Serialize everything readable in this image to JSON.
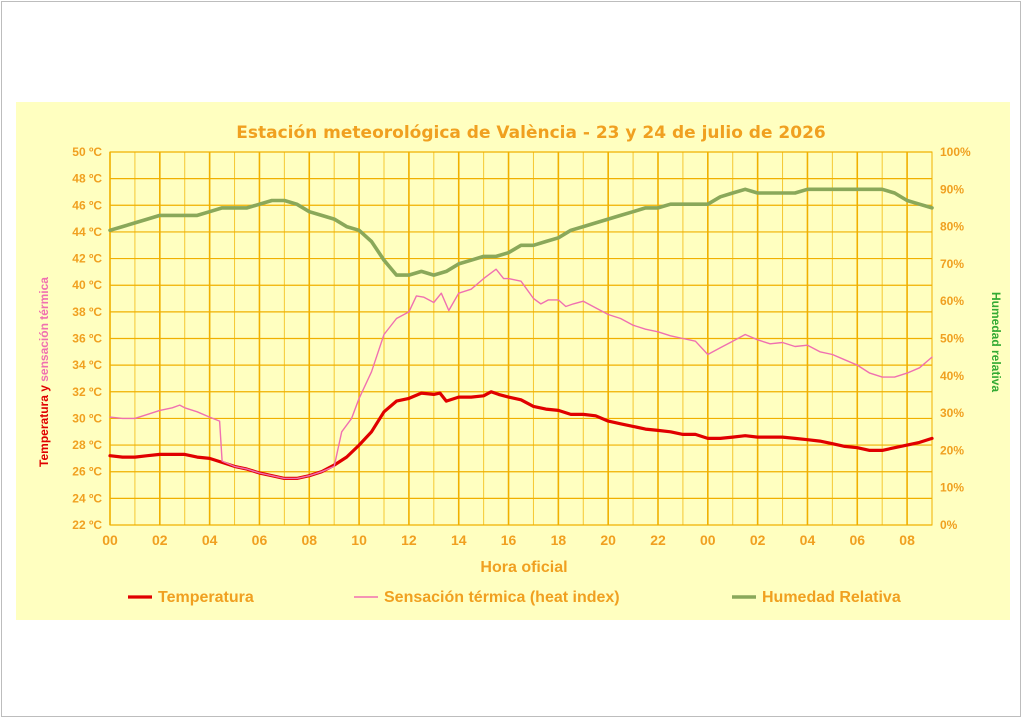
{
  "chart_data": {
    "type": "line",
    "title": "Estación meteorológica de València - 23 y 24 de julio de 2026",
    "xlabel": "Hora oficial",
    "ylabel_left_part1": "Temperatura y ",
    "ylabel_left_part2": "sensación térmica",
    "ylabel_right": "Humedad relativa",
    "x_range_hours": [
      0,
      33
    ],
    "x_tick_labels": [
      "00",
      "02",
      "04",
      "06",
      "08",
      "10",
      "12",
      "14",
      "16",
      "18",
      "20",
      "22",
      "00",
      "02",
      "04",
      "06",
      "08"
    ],
    "y_left_range": [
      22,
      50
    ],
    "y_left_tick_labels": [
      "22 ºC",
      "24 ºC",
      "26 ºC",
      "28 ºC",
      "30 ºC",
      "32 ºC",
      "34 ºC",
      "36 ºC",
      "38 ºC",
      "40 ºC",
      "42 ºC",
      "44 ºC",
      "46 ºC",
      "48 ºC",
      "50 ºC"
    ],
    "y_right_range": [
      0,
      100
    ],
    "y_right_tick_labels": [
      "0%",
      "10%",
      "20%",
      "30%",
      "40%",
      "50%",
      "60%",
      "70%",
      "80%",
      "90%",
      "100%"
    ],
    "grid": true,
    "legend_position": "bottom",
    "series": [
      {
        "name": "Temperatura",
        "axis": "left",
        "color": "#e00000",
        "points": [
          [
            0,
            27.2
          ],
          [
            0.5,
            27.1
          ],
          [
            1,
            27.1
          ],
          [
            1.5,
            27.2
          ],
          [
            2,
            27.3
          ],
          [
            2.5,
            27.3
          ],
          [
            3,
            27.3
          ],
          [
            3.5,
            27.1
          ],
          [
            4,
            27.0
          ],
          [
            4.5,
            26.7
          ],
          [
            5,
            26.4
          ],
          [
            5.5,
            26.2
          ],
          [
            6,
            25.9
          ],
          [
            6.5,
            25.7
          ],
          [
            7,
            25.5
          ],
          [
            7.5,
            25.5
          ],
          [
            8,
            25.7
          ],
          [
            8.5,
            26.0
          ],
          [
            9,
            26.5
          ],
          [
            9.5,
            27.1
          ],
          [
            10,
            28.0
          ],
          [
            10.5,
            29.0
          ],
          [
            11,
            30.5
          ],
          [
            11.5,
            31.3
          ],
          [
            12,
            31.5
          ],
          [
            12.5,
            31.9
          ],
          [
            13,
            31.8
          ],
          [
            13.25,
            31.9
          ],
          [
            13.5,
            31.3
          ],
          [
            14,
            31.6
          ],
          [
            14.5,
            31.6
          ],
          [
            15,
            31.7
          ],
          [
            15.3,
            32.0
          ],
          [
            15.6,
            31.8
          ],
          [
            16,
            31.6
          ],
          [
            16.5,
            31.4
          ],
          [
            17,
            30.9
          ],
          [
            17.5,
            30.7
          ],
          [
            18,
            30.6
          ],
          [
            18.5,
            30.3
          ],
          [
            19,
            30.3
          ],
          [
            19.5,
            30.2
          ],
          [
            20,
            29.8
          ],
          [
            20.5,
            29.6
          ],
          [
            21,
            29.4
          ],
          [
            21.5,
            29.2
          ],
          [
            22,
            29.1
          ],
          [
            22.5,
            29.0
          ],
          [
            23,
            28.8
          ],
          [
            23.5,
            28.8
          ],
          [
            24,
            28.5
          ],
          [
            24.5,
            28.5
          ],
          [
            25,
            28.6
          ],
          [
            25.5,
            28.7
          ],
          [
            26,
            28.6
          ],
          [
            26.5,
            28.6
          ],
          [
            27,
            28.6
          ],
          [
            27.5,
            28.5
          ],
          [
            28,
            28.4
          ],
          [
            28.5,
            28.3
          ],
          [
            29,
            28.1
          ],
          [
            29.5,
            27.9
          ],
          [
            30,
            27.8
          ],
          [
            30.5,
            27.6
          ],
          [
            31,
            27.6
          ],
          [
            31.5,
            27.8
          ],
          [
            32,
            28.0
          ],
          [
            32.5,
            28.2
          ],
          [
            33,
            28.5
          ]
        ]
      },
      {
        "name": "Sensación térmica (heat index)",
        "axis": "left",
        "color": "#f070b0",
        "points": [
          [
            0,
            30.1
          ],
          [
            0.5,
            30.0
          ],
          [
            1,
            30.0
          ],
          [
            1.5,
            30.3
          ],
          [
            2,
            30.6
          ],
          [
            2.5,
            30.8
          ],
          [
            2.8,
            31.0
          ],
          [
            3,
            30.8
          ],
          [
            3.5,
            30.5
          ],
          [
            4,
            30.1
          ],
          [
            4.4,
            29.8
          ],
          [
            4.5,
            26.8
          ],
          [
            5,
            26.4
          ],
          [
            5.5,
            26.2
          ],
          [
            6,
            25.9
          ],
          [
            6.5,
            25.7
          ],
          [
            7,
            25.5
          ],
          [
            7.5,
            25.5
          ],
          [
            8,
            25.7
          ],
          [
            8.5,
            26.0
          ],
          [
            9,
            26.4
          ],
          [
            9.3,
            29.0
          ],
          [
            9.7,
            30.0
          ],
          [
            10,
            31.5
          ],
          [
            10.5,
            33.5
          ],
          [
            11,
            36.3
          ],
          [
            11.5,
            37.5
          ],
          [
            12,
            38.0
          ],
          [
            12.3,
            39.2
          ],
          [
            12.6,
            39.1
          ],
          [
            13,
            38.7
          ],
          [
            13.3,
            39.4
          ],
          [
            13.6,
            38.1
          ],
          [
            14,
            39.4
          ],
          [
            14.5,
            39.7
          ],
          [
            15,
            40.5
          ],
          [
            15.5,
            41.2
          ],
          [
            15.8,
            40.5
          ],
          [
            16,
            40.5
          ],
          [
            16.5,
            40.3
          ],
          [
            17,
            39.0
          ],
          [
            17.3,
            38.6
          ],
          [
            17.6,
            38.9
          ],
          [
            18,
            38.9
          ],
          [
            18.3,
            38.4
          ],
          [
            18.6,
            38.6
          ],
          [
            19,
            38.8
          ],
          [
            19.5,
            38.3
          ],
          [
            20,
            37.8
          ],
          [
            20.5,
            37.5
          ],
          [
            21,
            37.0
          ],
          [
            21.5,
            36.7
          ],
          [
            22,
            36.5
          ],
          [
            22.5,
            36.2
          ],
          [
            23,
            36.0
          ],
          [
            23.5,
            35.8
          ],
          [
            24,
            34.8
          ],
          [
            24.5,
            35.3
          ],
          [
            25,
            35.8
          ],
          [
            25.5,
            36.3
          ],
          [
            26,
            35.9
          ],
          [
            26.5,
            35.6
          ],
          [
            27,
            35.7
          ],
          [
            27.5,
            35.4
          ],
          [
            28,
            35.5
          ],
          [
            28.5,
            35.0
          ],
          [
            29,
            34.8
          ],
          [
            29.5,
            34.4
          ],
          [
            30,
            34.0
          ],
          [
            30.5,
            33.4
          ],
          [
            31,
            33.1
          ],
          [
            31.5,
            33.1
          ],
          [
            32,
            33.4
          ],
          [
            32.5,
            33.8
          ],
          [
            33,
            34.6
          ]
        ]
      },
      {
        "name": "Humedad Relativa",
        "axis": "right",
        "color": "#8aa85a",
        "points": [
          [
            0,
            79
          ],
          [
            0.5,
            80
          ],
          [
            1,
            81
          ],
          [
            1.5,
            82
          ],
          [
            2,
            83
          ],
          [
            2.5,
            83
          ],
          [
            3,
            83
          ],
          [
            3.5,
            83
          ],
          [
            4,
            84
          ],
          [
            4.5,
            85
          ],
          [
            5,
            85
          ],
          [
            5.5,
            85
          ],
          [
            6,
            86
          ],
          [
            6.5,
            87
          ],
          [
            7,
            87
          ],
          [
            7.5,
            86
          ],
          [
            8,
            84
          ],
          [
            8.5,
            83
          ],
          [
            9,
            82
          ],
          [
            9.5,
            80
          ],
          [
            10,
            79
          ],
          [
            10.5,
            76
          ],
          [
            11,
            71
          ],
          [
            11.5,
            67
          ],
          [
            12,
            67
          ],
          [
            12.5,
            68
          ],
          [
            13,
            67
          ],
          [
            13.5,
            68
          ],
          [
            14,
            70
          ],
          [
            14.5,
            71
          ],
          [
            15,
            72
          ],
          [
            15.5,
            72
          ],
          [
            16,
            73
          ],
          [
            16.5,
            75
          ],
          [
            17,
            75
          ],
          [
            17.5,
            76
          ],
          [
            18,
            77
          ],
          [
            18.5,
            79
          ],
          [
            19,
            80
          ],
          [
            19.5,
            81
          ],
          [
            20,
            82
          ],
          [
            20.5,
            83
          ],
          [
            21,
            84
          ],
          [
            21.5,
            85
          ],
          [
            22,
            85
          ],
          [
            22.5,
            86
          ],
          [
            23,
            86
          ],
          [
            23.5,
            86
          ],
          [
            24,
            86
          ],
          [
            24.5,
            88
          ],
          [
            25,
            89
          ],
          [
            25.5,
            90
          ],
          [
            26,
            89
          ],
          [
            26.5,
            89
          ],
          [
            27,
            89
          ],
          [
            27.5,
            89
          ],
          [
            28,
            90
          ],
          [
            28.5,
            90
          ],
          [
            29,
            90
          ],
          [
            29.5,
            90
          ],
          [
            30,
            90
          ],
          [
            30.5,
            90
          ],
          [
            31,
            90
          ],
          [
            31.5,
            89
          ],
          [
            32,
            87
          ],
          [
            32.5,
            86
          ],
          [
            33,
            85
          ]
        ]
      }
    ]
  }
}
